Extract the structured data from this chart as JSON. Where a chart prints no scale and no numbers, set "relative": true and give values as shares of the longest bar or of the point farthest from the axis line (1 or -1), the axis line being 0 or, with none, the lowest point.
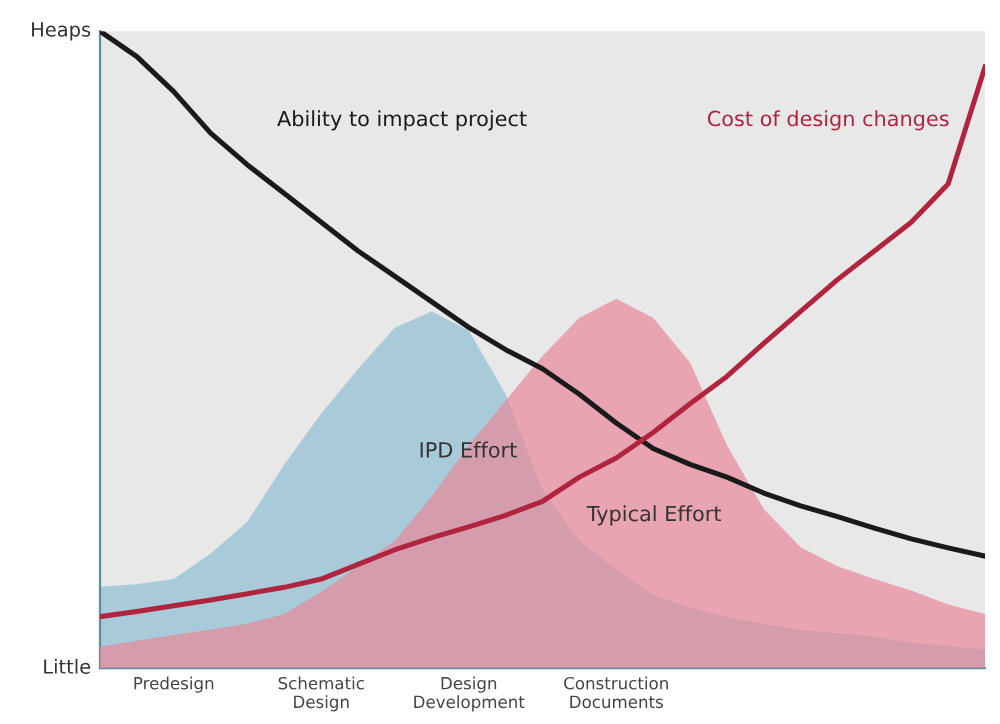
{
  "chart_data": {
    "type": "area",
    "relative": true,
    "categories": [
      null,
      null,
      "Predesign",
      null,
      null,
      null,
      "Schematic\nDesign",
      null,
      null,
      null,
      "Design\nDevelopment",
      null,
      null,
      null,
      "Construction\nDocuments",
      null,
      null,
      null,
      null,
      null,
      null,
      null,
      null,
      null,
      null
    ],
    "series": [
      {
        "name": "IPD Effort",
        "color": "#a9cbd9",
        "values": [
          0.128,
          0.132,
          0.14,
          0.18,
          0.23,
          0.32,
          0.4,
          0.47,
          0.535,
          0.56,
          0.53,
          0.43,
          0.28,
          0.2,
          0.155,
          0.115,
          0.095,
          0.08,
          0.07,
          0.06,
          0.055,
          0.05,
          0.04,
          0.035,
          0.03
        ]
      },
      {
        "name": "Typical Effort",
        "color": "#e8a5b0",
        "values": [
          0.034,
          0.043,
          0.052,
          0.061,
          0.07,
          0.085,
          0.12,
          0.16,
          0.2,
          0.27,
          0.35,
          0.42,
          0.49,
          0.55,
          0.58,
          0.55,
          0.48,
          0.35,
          0.25,
          0.19,
          0.16,
          0.14,
          0.122,
          0.1,
          0.085
        ]
      },
      {
        "name": "Ability to impact project",
        "type": "line",
        "color": "#1a1a1a",
        "values": [
          1.0,
          0.96,
          0.905,
          0.84,
          0.79,
          0.745,
          0.7,
          0.655,
          0.615,
          0.575,
          0.535,
          0.5,
          0.47,
          0.43,
          0.385,
          0.345,
          0.32,
          0.3,
          0.275,
          0.255,
          0.238,
          0.22,
          0.203,
          0.189,
          0.176
        ]
      },
      {
        "name": "Cost of design changes",
        "type": "line",
        "color": "#b0243f",
        "values": [
          0.081,
          0.089,
          0.098,
          0.107,
          0.117,
          0.127,
          0.14,
          0.163,
          0.186,
          0.205,
          0.222,
          0.24,
          0.262,
          0.3,
          0.33,
          0.37,
          0.415,
          0.458,
          0.51,
          0.56,
          0.61,
          0.655,
          0.7,
          0.76,
          0.944
        ]
      }
    ],
    "annotations": [
      "Heaps",
      "Little"
    ]
  }
}
